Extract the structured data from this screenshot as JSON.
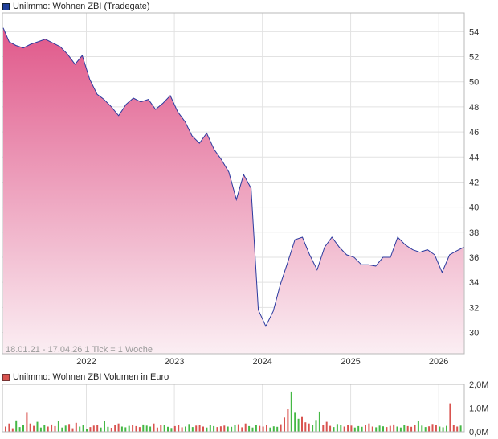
{
  "price_panel": {
    "legend": "Unilmmo: Wohnen ZBI (Tradegate)",
    "legend_color": "#1f3f9a",
    "line_color": "#2b3a9f",
    "fill_top_color": "#e0588a",
    "fill_bottom_color": "#fbeef3",
    "footnote": "18.01.21 - 17.04.26   1 Tick = 1 Woche"
  },
  "volume_panel": {
    "legend": "Unilmmo: Wohnen ZBI Volumen in Euro",
    "legend_color": "#d9534f",
    "bar_colors": [
      "#d9534f",
      "#45b845"
    ]
  },
  "chart_data": [
    {
      "type": "area",
      "x_ticks": [
        "2022",
        "2023",
        "2024",
        "2025",
        "2026"
      ],
      "y_ticks": [
        "54",
        "52",
        "50",
        "48",
        "46",
        "44",
        "42",
        "40",
        "38",
        "36",
        "34",
        "32",
        "30"
      ],
      "ylim": [
        28.3,
        55.5
      ],
      "xlim": [
        "2021-01-18",
        "2026-04-17"
      ],
      "grid": true,
      "x": [
        "2021-01",
        "2021-02",
        "2021-03",
        "2021-04",
        "2021-05",
        "2021-06",
        "2021-07",
        "2021-08",
        "2021-09",
        "2021-10",
        "2021-11",
        "2021-12",
        "2022-01",
        "2022-02",
        "2022-03",
        "2022-04",
        "2022-05",
        "2022-06",
        "2022-07",
        "2022-08",
        "2022-09",
        "2022-10",
        "2022-11",
        "2022-12",
        "2023-01",
        "2023-02",
        "2023-03",
        "2023-04",
        "2023-05",
        "2023-06",
        "2023-07",
        "2023-08",
        "2023-09",
        "2023-10",
        "2023-11",
        "2023-12",
        "2024-01",
        "2024-02",
        "2024-03",
        "2024-04",
        "2024-05",
        "2024-06",
        "2024-07",
        "2024-08",
        "2024-09",
        "2024-10",
        "2024-11",
        "2024-12",
        "2025-01",
        "2025-02",
        "2025-03",
        "2025-04",
        "2025-05",
        "2025-06",
        "2025-07",
        "2025-08",
        "2025-09",
        "2025-10",
        "2025-11",
        "2025-12",
        "2026-01",
        "2026-02",
        "2026-03",
        "2026-04"
      ],
      "y": [
        54.3,
        53.2,
        52.9,
        52.7,
        53.0,
        53.2,
        53.4,
        53.1,
        52.8,
        52.2,
        51.4,
        52.1,
        50.2,
        49.0,
        48.6,
        48.0,
        47.3,
        48.2,
        48.7,
        48.4,
        48.6,
        47.8,
        48.3,
        48.9,
        47.6,
        46.8,
        45.7,
        45.1,
        45.9,
        44.6,
        43.8,
        42.8,
        40.6,
        42.6,
        41.5,
        31.8,
        30.5,
        31.7,
        33.8,
        35.6,
        37.4,
        37.6,
        36.2,
        35.0,
        36.8,
        37.6,
        36.8,
        36.2,
        36.0,
        35.4,
        35.4,
        35.3,
        36.0,
        36.0,
        37.6,
        37.0,
        36.6,
        36.4,
        36.6,
        36.2,
        34.8,
        36.2,
        36.5,
        36.8
      ]
    },
    {
      "type": "bar",
      "y_ticks": [
        "2,0M",
        "1,0M",
        "0,0M"
      ],
      "ylim": [
        0,
        2.0
      ],
      "unit": "M EUR",
      "values": [
        0.22,
        0.35,
        0.15,
        0.48,
        0.2,
        0.3,
        0.8,
        0.35,
        0.25,
        0.42,
        0.18,
        0.28,
        0.22,
        0.31,
        0.24,
        0.45,
        0.18,
        0.26,
        0.33,
        0.15,
        0.38,
        0.22,
        0.27,
        0.12,
        0.2,
        0.26,
        0.3,
        0.18,
        0.44,
        0.21,
        0.17,
        0.29,
        0.35,
        0.22,
        0.19,
        0.25,
        0.28,
        0.24,
        0.2,
        0.31,
        0.26,
        0.22,
        0.35,
        0.18,
        0.29,
        0.3,
        0.21,
        0.16,
        0.24,
        0.27,
        0.19,
        0.22,
        0.33,
        0.2,
        0.26,
        0.3,
        0.22,
        0.18,
        0.27,
        0.24,
        0.2,
        0.23,
        0.26,
        0.22,
        0.21,
        0.28,
        0.32,
        0.19,
        0.35,
        0.24,
        0.18,
        0.3,
        0.25,
        0.22,
        0.29,
        0.18,
        0.23,
        0.21,
        0.32,
        0.6,
        0.95,
        1.7,
        0.8,
        0.55,
        0.62,
        0.4,
        0.35,
        0.28,
        0.5,
        0.85,
        0.3,
        0.42,
        0.25,
        0.2,
        0.33,
        0.27,
        0.22,
        0.3,
        0.26,
        0.18,
        0.24,
        0.21,
        0.28,
        0.35,
        0.22,
        0.19,
        0.26,
        0.23,
        0.2,
        0.25,
        0.31,
        0.22,
        0.18,
        0.27,
        0.24,
        0.21,
        0.29,
        0.45,
        0.26,
        0.2,
        0.23,
        0.33,
        0.28,
        0.22,
        0.19,
        0.25,
        1.2,
        0.3,
        0.22,
        0.26
      ],
      "series_colors": "red = price down week, green = price up week"
    }
  ]
}
